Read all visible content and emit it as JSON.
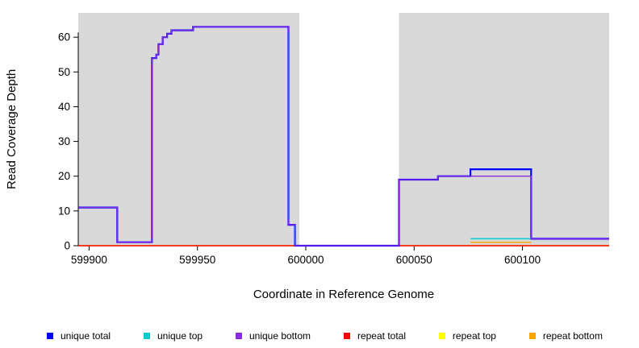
{
  "chart_data": {
    "type": "line",
    "title": "",
    "xlabel": "Coordinate in Reference Genome",
    "ylabel": "Read Coverage Depth",
    "xlim": [
      599895,
      600140
    ],
    "ylim": [
      0,
      67
    ],
    "x_ticks": [
      599900,
      599950,
      600000,
      600050,
      600100
    ],
    "y_ticks": [
      0,
      10,
      20,
      30,
      40,
      50,
      60
    ],
    "grid": false,
    "legend_position": "bottom",
    "plot_background": "#ffffff",
    "shaded_region_color": "#d9d9d9",
    "shaded_regions": [
      {
        "x0": 599895,
        "x1": 599997
      },
      {
        "x0": 600043,
        "x1": 600140
      }
    ],
    "series": [
      {
        "name": "unique total",
        "color": "#0000FF",
        "points": [
          [
            599895,
            11
          ],
          [
            599913,
            11
          ],
          [
            599913,
            1
          ],
          [
            599929,
            1
          ],
          [
            599929,
            54
          ],
          [
            599931,
            54
          ],
          [
            599931,
            55
          ],
          [
            599932,
            55
          ],
          [
            599932,
            58
          ],
          [
            599934,
            58
          ],
          [
            599934,
            60
          ],
          [
            599936,
            60
          ],
          [
            599936,
            61
          ],
          [
            599938,
            61
          ],
          [
            599938,
            62
          ],
          [
            599948,
            62
          ],
          [
            599948,
            63
          ],
          [
            599992,
            63
          ],
          [
            599992,
            6
          ],
          [
            599995,
            6
          ],
          [
            599995,
            0
          ],
          [
            600043,
            0
          ],
          [
            600043,
            19
          ],
          [
            600061,
            19
          ],
          [
            600061,
            20
          ],
          [
            600076,
            20
          ],
          [
            600076,
            22
          ],
          [
            600104,
            22
          ],
          [
            600104,
            2
          ],
          [
            600140,
            2
          ]
        ]
      },
      {
        "name": "unique top",
        "color": "#00CDCD",
        "points": [
          [
            600076,
            2
          ],
          [
            600104,
            2
          ]
        ]
      },
      {
        "name": "unique bottom",
        "color": "#8A2BE2",
        "points": [
          [
            599895,
            11
          ],
          [
            599913,
            11
          ],
          [
            599913,
            1
          ],
          [
            599929,
            1
          ],
          [
            599929,
            54
          ],
          [
            599931,
            54
          ],
          [
            599931,
            55
          ],
          [
            599932,
            55
          ],
          [
            599932,
            58
          ],
          [
            599934,
            58
          ],
          [
            599934,
            60
          ],
          [
            599936,
            60
          ],
          [
            599936,
            61
          ],
          [
            599938,
            61
          ],
          [
            599938,
            62
          ],
          [
            599948,
            62
          ],
          [
            599948,
            63
          ],
          [
            599992,
            63
          ],
          [
            599992,
            6
          ],
          [
            599995,
            6
          ],
          [
            599995,
            0
          ],
          [
            600043,
            0
          ],
          [
            600043,
            19
          ],
          [
            600061,
            19
          ],
          [
            600061,
            20
          ],
          [
            600104,
            20
          ],
          [
            600104,
            2
          ],
          [
            600140,
            2
          ]
        ]
      },
      {
        "name": "repeat total",
        "color": "#FF0000",
        "points": [
          [
            599895,
            0
          ],
          [
            600140,
            0
          ]
        ]
      },
      {
        "name": "repeat top",
        "color": "#FFFF00",
        "points": [
          [
            599895,
            0
          ],
          [
            600140,
            0
          ]
        ]
      },
      {
        "name": "repeat bottom",
        "color": "#FFA500",
        "points": [
          [
            600076,
            1
          ],
          [
            600104,
            1
          ]
        ]
      }
    ],
    "draw_order": [
      4,
      5,
      3,
      0,
      1,
      2
    ]
  }
}
